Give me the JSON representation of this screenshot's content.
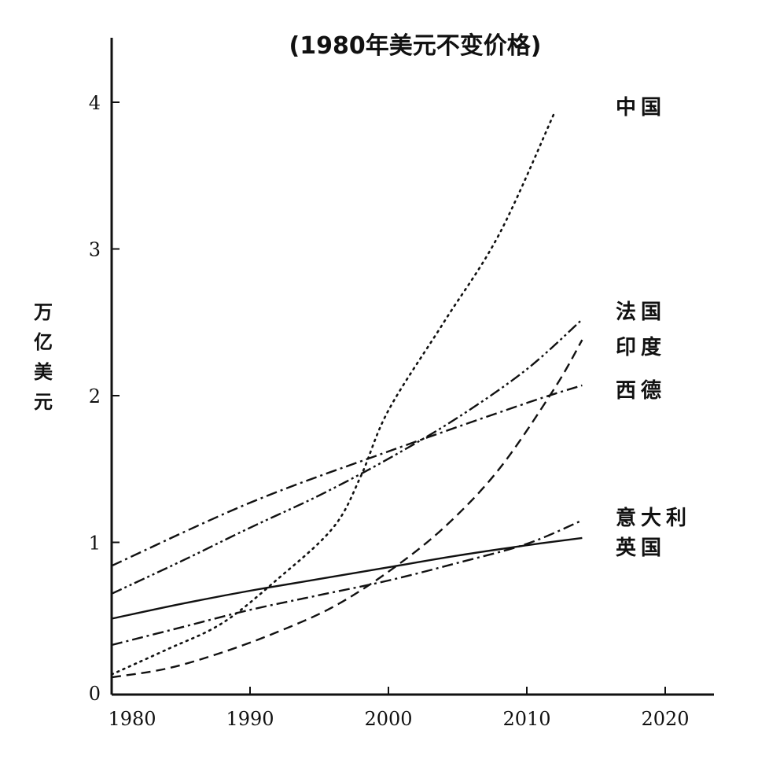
{
  "chart_data": {
    "type": "line",
    "title": "(1980年美元不变价格)",
    "xlabel": "",
    "ylabel": "万亿美元",
    "xlim": [
      1980,
      2022
    ],
    "ylim": [
      0,
      4.5
    ],
    "xticks": [
      "1980",
      "1990",
      "2000",
      "2010",
      "2020"
    ],
    "yticks": [
      "0",
      "1",
      "2",
      "3",
      "4"
    ],
    "grid": false,
    "legend": "inline labels at right end of lines",
    "series": [
      {
        "name": "中国",
        "style": "dotted",
        "x": [
          1980,
          1984,
          1988,
          1992,
          1996,
          1998,
          2000,
          2004,
          2008,
          2012
        ],
        "y": [
          0.1,
          0.27,
          0.45,
          0.75,
          1.1,
          1.45,
          1.9,
          2.5,
          3.1,
          3.93
        ]
      },
      {
        "name": "法国",
        "style": "dash-dot-dot",
        "x": [
          1980,
          1985,
          1990,
          1995,
          2000,
          2005,
          2010,
          2014
        ],
        "y": [
          0.65,
          0.87,
          1.1,
          1.32,
          1.57,
          1.85,
          2.18,
          2.52
        ]
      },
      {
        "name": "印度",
        "style": "dashed",
        "x": [
          1980,
          1984,
          1988,
          1992,
          1996,
          2000,
          2004,
          2008,
          2012,
          2014
        ],
        "y": [
          0.08,
          0.14,
          0.25,
          0.39,
          0.56,
          0.8,
          1.1,
          1.5,
          2.05,
          2.38
        ]
      },
      {
        "name": "西德",
        "style": "dash-dot",
        "x": [
          1980,
          1990,
          2000,
          2010,
          2014
        ],
        "y": [
          0.84,
          1.27,
          1.62,
          1.95,
          2.07
        ]
      },
      {
        "name": "意大利",
        "style": "dash-dot",
        "x": [
          1980,
          1985,
          1990,
          1995,
          2000,
          2005,
          2010,
          2014
        ],
        "y": [
          0.3,
          0.42,
          0.54,
          0.64,
          0.74,
          0.86,
          0.99,
          1.15
        ]
      },
      {
        "name": "英国",
        "style": "solid",
        "x": [
          1980,
          1985,
          1990,
          1995,
          2000,
          2005,
          2010,
          2014
        ],
        "y": [
          0.48,
          0.58,
          0.67,
          0.75,
          0.83,
          0.91,
          0.98,
          1.03
        ]
      }
    ]
  }
}
